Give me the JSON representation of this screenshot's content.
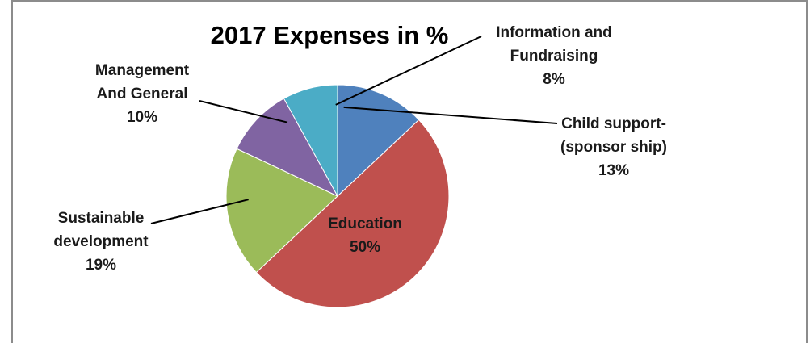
{
  "chart_data": {
    "type": "pie",
    "title": "2017 Expenses in %",
    "slices": [
      {
        "label_lines": [
          "Child support-",
          "(sponsor ship)"
        ],
        "pct_text": "13%",
        "value": 13,
        "color": "#4f81bd"
      },
      {
        "label_lines": [
          "Education"
        ],
        "pct_text": "50%",
        "value": 50,
        "color": "#c0504d"
      },
      {
        "label_lines": [
          "Sustainable",
          "development"
        ],
        "pct_text": "19%",
        "value": 19,
        "color": "#9bbb59"
      },
      {
        "label_lines": [
          "Management",
          "And General"
        ],
        "pct_text": "10%",
        "value": 10,
        "color": "#8064a2"
      },
      {
        "label_lines": [
          "Information and",
          "Fundraising"
        ],
        "pct_text": "8%",
        "value": 8,
        "color": "#4bacc6"
      }
    ]
  }
}
